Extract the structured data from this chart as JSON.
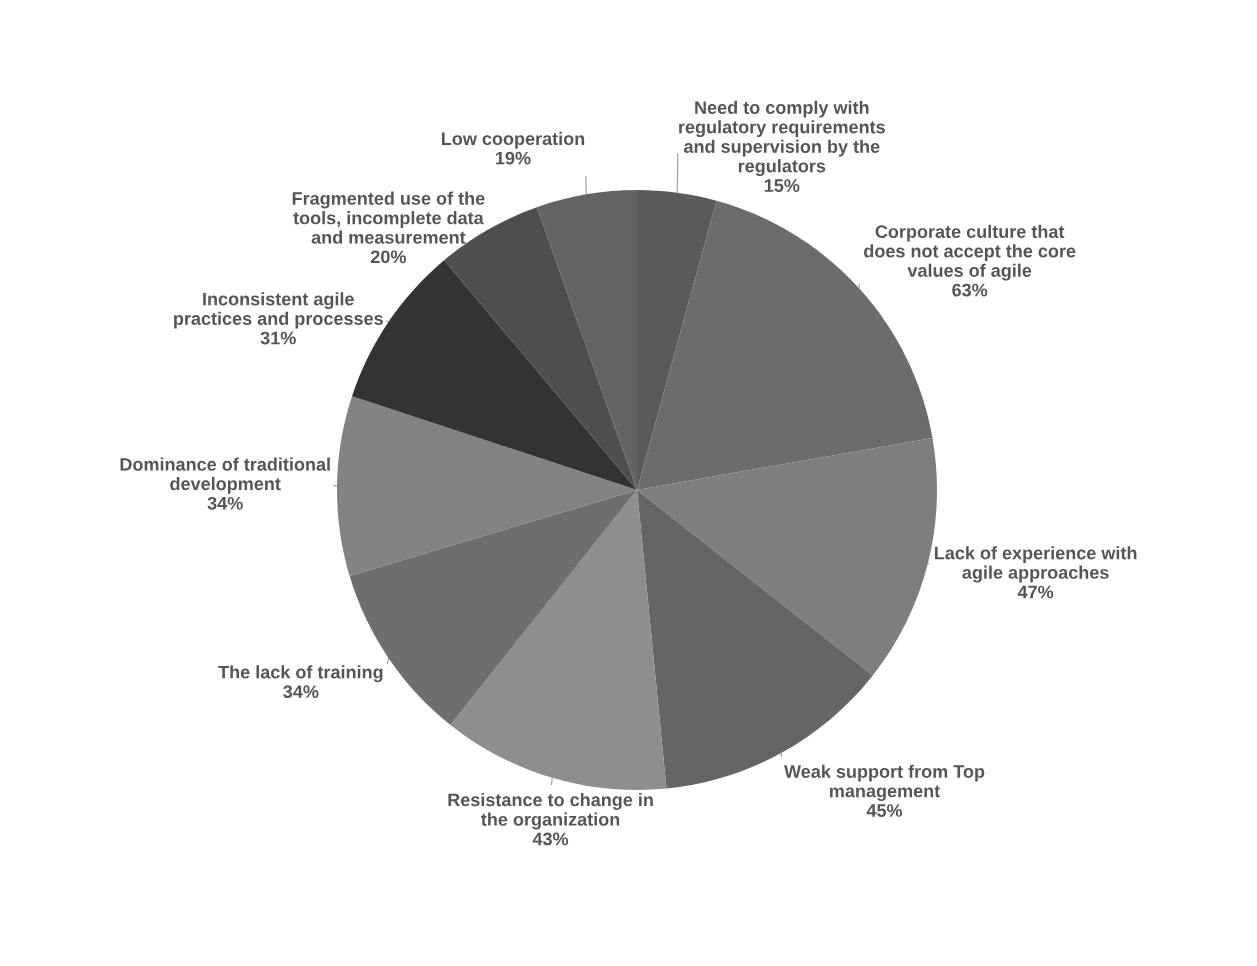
{
  "chart_data": {
    "type": "pie",
    "categories": [
      "Need to comply with\nregulatory requirements\nand supervision by the\nregulators",
      "Corporate culture that\ndoes not accept the core\nvalues of agile",
      "Lack of experience with\nagile approaches",
      "Weak support from Top\nmanagement",
      "Resistance to change in\nthe organization",
      "The lack of training",
      "Dominance of traditional\ndevelopment",
      "Inconsistent agile\npractices and processes",
      "Fragmented use of the\ntools, incomplete data\nand measurement",
      "Low cooperation"
    ],
    "values": [
      15,
      63,
      47,
      45,
      43,
      34,
      34,
      31,
      20,
      19
    ],
    "value_labels": [
      "15%",
      "63%",
      "47%",
      "45%",
      "43%",
      "34%",
      "34%",
      "31%",
      "20%",
      "19%"
    ],
    "colors": [
      "#5a5a5a",
      "#6c6c6c",
      "#7e7e7e",
      "#656565",
      "#8e8e8e",
      "#6e6e6e",
      "#838383",
      "#333333",
      "#4e4e4e",
      "#636363"
    ]
  }
}
